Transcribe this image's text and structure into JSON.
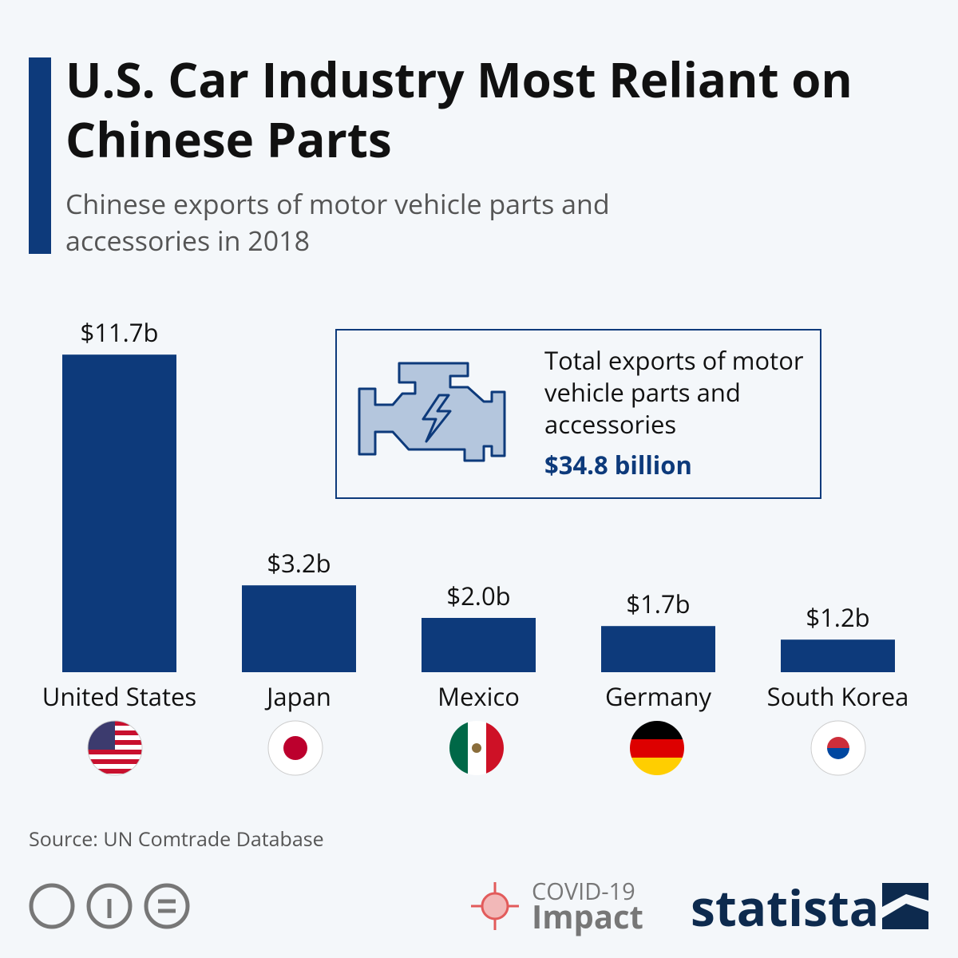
{
  "chart_data": {
    "type": "bar",
    "title": "U.S. Car Industry Most Reliant on Chinese Parts",
    "subtitle": "Chinese exports of motor vehicle parts and accessories in 2018",
    "categories": [
      "United States",
      "Japan",
      "Mexico",
      "Germany",
      "South Korea"
    ],
    "values": [
      11.7,
      3.2,
      2.0,
      1.7,
      1.2
    ],
    "value_labels": [
      "$11.7b",
      "$3.2b",
      "$2.0b",
      "$1.7b",
      "$1.2b"
    ],
    "color": "#0d3a7b",
    "annotation": {
      "text": "Total exports of motor vehicle parts and accessories",
      "value": "$34.8 billion"
    },
    "source": "Source: UN Comtrade Database"
  },
  "footer": {
    "covid": "COVID-19",
    "impact": "Impact",
    "brand": "statista"
  }
}
